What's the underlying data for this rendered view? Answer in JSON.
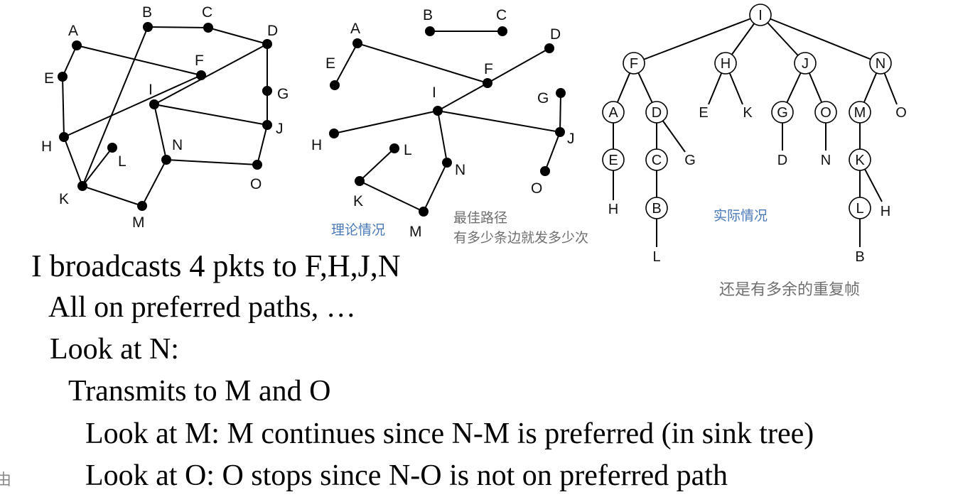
{
  "graphs": {
    "original": {
      "labels": [
        "A",
        "B",
        "C",
        "D",
        "E",
        "F",
        "G",
        "H",
        "I",
        "J",
        "K",
        "L",
        "M",
        "N",
        "O"
      ]
    },
    "theory": {
      "labels": [
        "A",
        "B",
        "C",
        "D",
        "E",
        "F",
        "G",
        "H",
        "I",
        "J",
        "K",
        "L",
        "M",
        "N",
        "O"
      ],
      "caption": "理论情况"
    },
    "optimal_note": {
      "line1": "最佳路径",
      "line2": "有多少条边就发多少次"
    },
    "actual_tree": {
      "labels": [
        "I",
        "F",
        "H",
        "J",
        "N",
        "A",
        "D",
        "E",
        "K",
        "G",
        "O",
        "M",
        "O",
        "E",
        "C",
        "G",
        "D",
        "N",
        "K",
        "H",
        "B",
        "L",
        "H",
        "L",
        "B"
      ],
      "caption": "实际情况",
      "note": "还是有多余的重复帧"
    }
  },
  "text_lines": [
    "I broadcasts 4 pkts to F,H,J,N",
    "All on preferred paths, …",
    "Look at N:",
    "Transmits to M and O",
    "Look at M: M continues since N-M is preferred (in sink tree)",
    "Look at O: O stops since N-O is not on preferred path"
  ],
  "side_char": "由"
}
